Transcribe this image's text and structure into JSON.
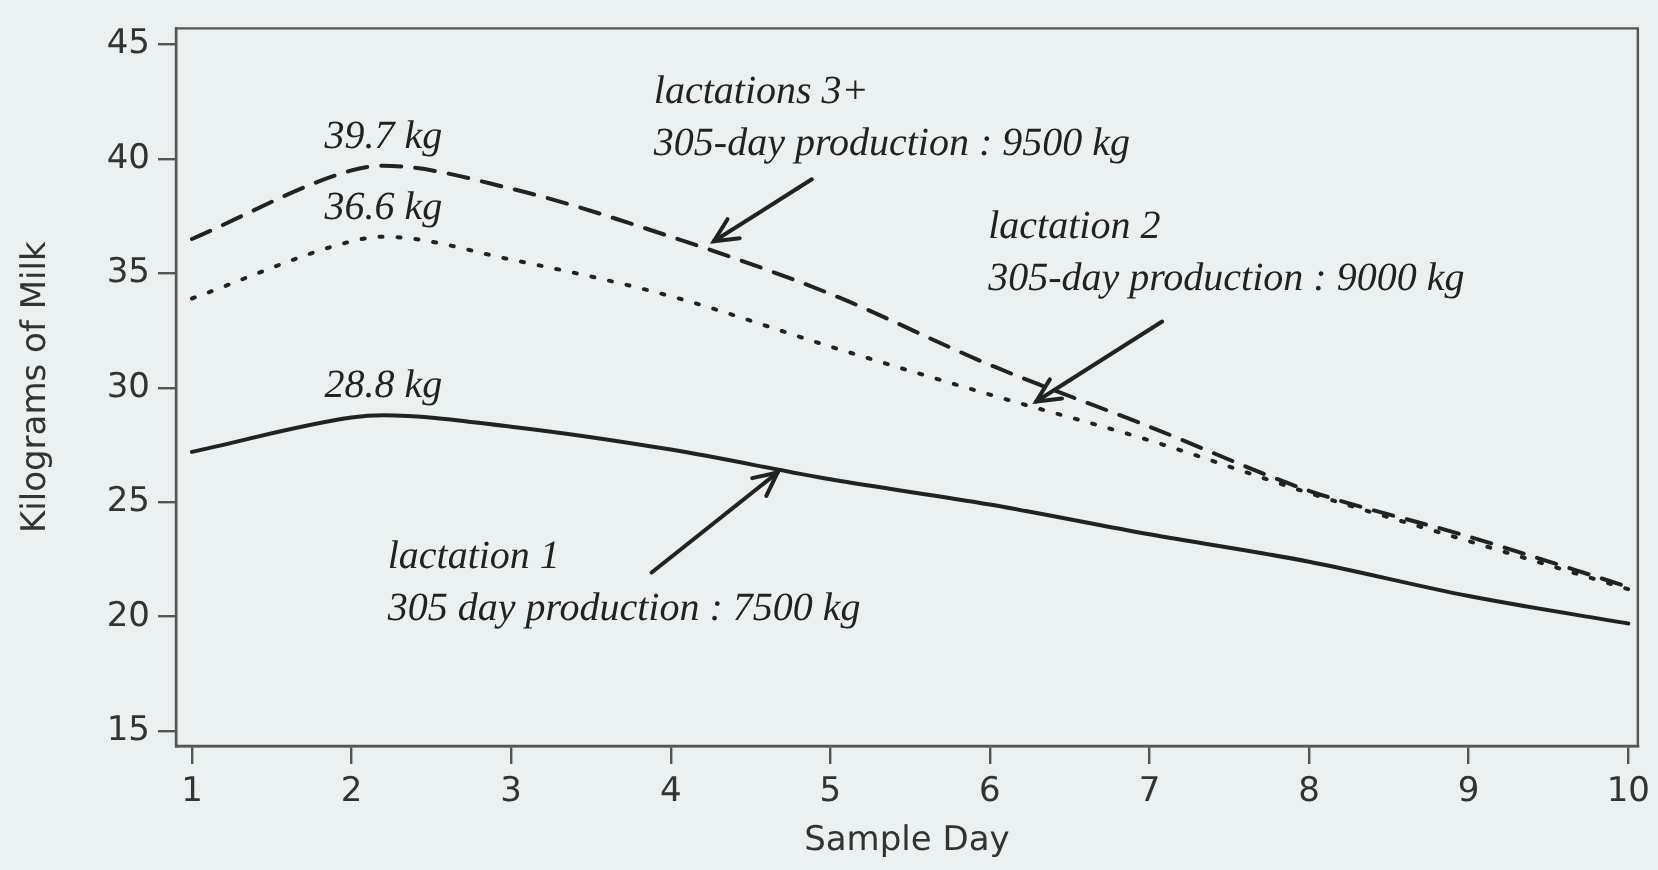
{
  "chart_data": {
    "type": "line",
    "xlabel": "Sample Day",
    "ylabel": "Kilograms of Milk",
    "xlim": [
      0.9,
      10.06
    ],
    "ylim": [
      14.35,
      45.7
    ],
    "xticks": [
      1,
      2,
      3,
      4,
      5,
      6,
      7,
      8,
      9,
      10
    ],
    "yticks": [
      15,
      20,
      25,
      30,
      35,
      40,
      45
    ],
    "x": [
      1,
      2,
      2.2,
      3,
      4,
      5,
      6,
      7,
      8,
      9,
      10
    ],
    "series": [
      {
        "color": "#222222",
        "line_style": "dashed",
        "values": [
          36.5,
          39.5,
          39.7,
          38.7,
          36.6,
          34.1,
          31.0,
          28.3,
          25.5,
          23.5,
          21.3
        ]
      },
      {
        "color": "#222222",
        "line_style": "dotted",
        "values": [
          33.9,
          36.4,
          36.6,
          35.6,
          34.0,
          31.8,
          29.7,
          27.7,
          25.4,
          23.3,
          21.2
        ]
      },
      {
        "color": "#222222",
        "line_style": "solid",
        "values": [
          27.2,
          28.7,
          28.8,
          28.3,
          27.3,
          26.0,
          24.9,
          23.6,
          22.4,
          20.9,
          19.7
        ]
      }
    ],
    "annotations": [
      {
        "text": "39.7 kg",
        "x": 2.2,
        "y": 39.7
      },
      {
        "text": "36.6 kg",
        "x": 2.2,
        "y": 36.6
      },
      {
        "text": "28.8 kg",
        "x": 2.2,
        "y": 28.8
      },
      {
        "text": "lactations 3+\n305-day production : 9500 kg",
        "x": 4.27,
        "y": 36.4
      },
      {
        "text": "lactation 2\n305-day production : 9000 kg",
        "x": 6.29,
        "y": 29.4
      },
      {
        "text": "lactation 1\n305 day production : 7500 kg",
        "x": 4.67,
        "y": 26.3
      }
    ],
    "marker": "none",
    "legend": false,
    "grid": false
  }
}
